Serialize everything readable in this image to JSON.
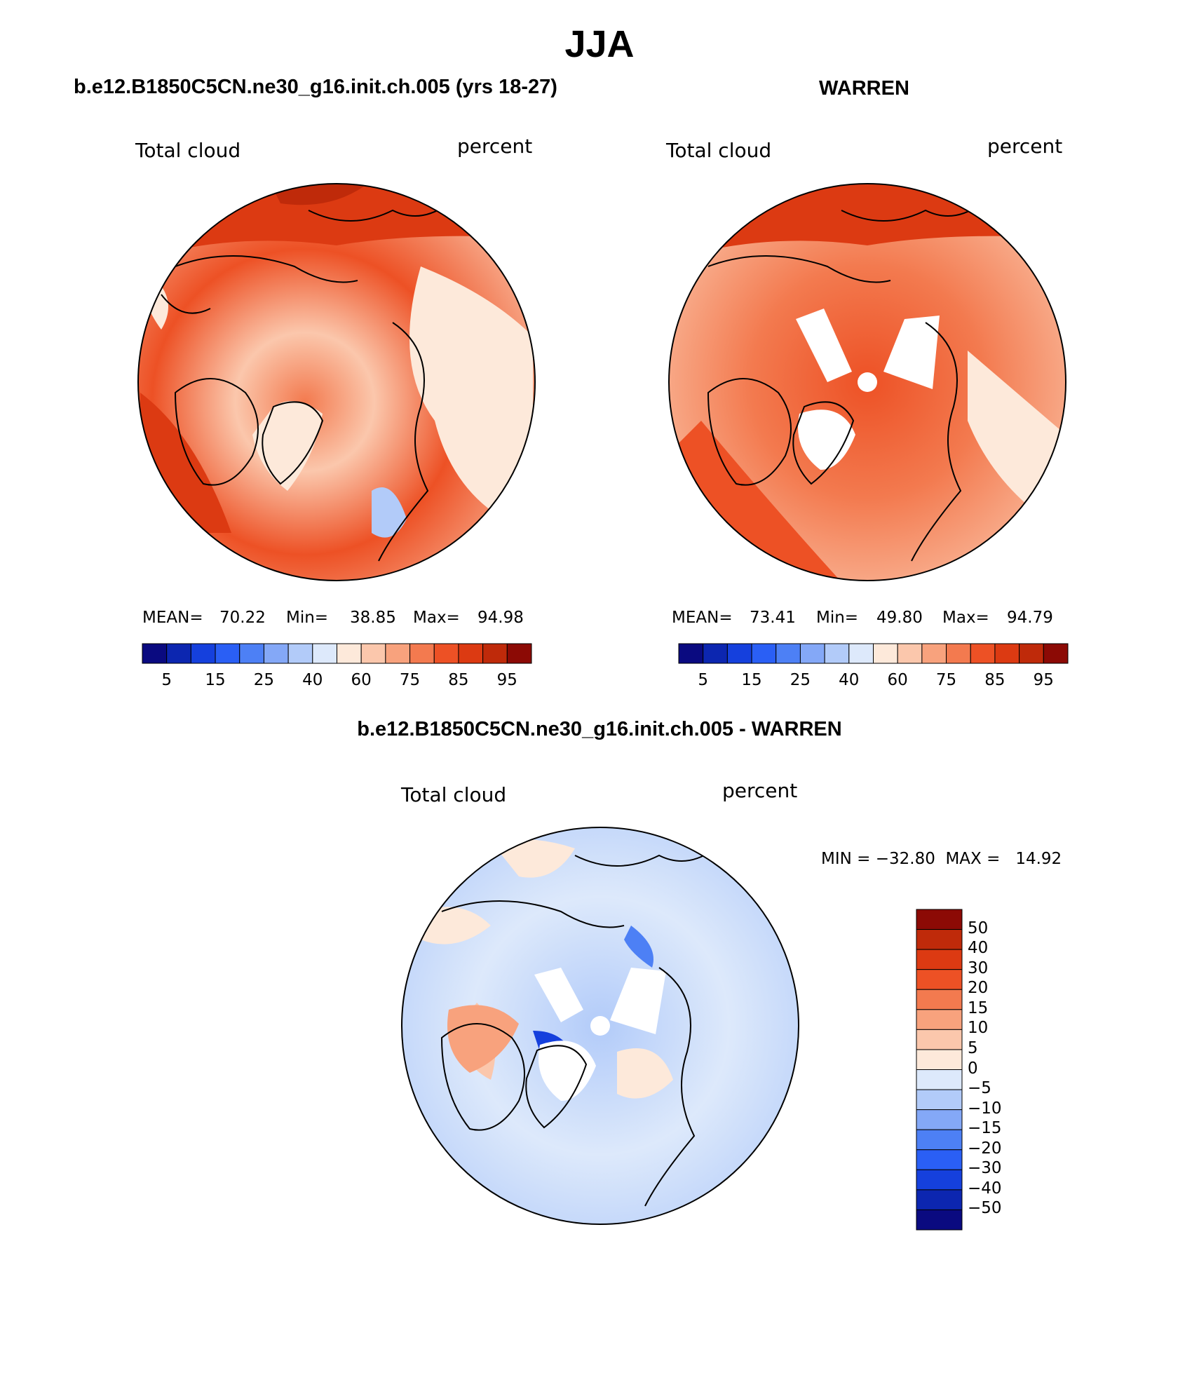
{
  "season": "JJA",
  "panels": [
    {
      "title": "b.e12.B1850C5CN.ne30_g16.init.ch.005 (yrs 18-27)",
      "variable": "Total cloud",
      "units": "percent",
      "stats": {
        "mean_label": "MEAN=",
        "mean": "70.22",
        "min_label": "Min=",
        "min": "38.85",
        "max_label": "Max=",
        "max": "94.98"
      },
      "colorbar_ticks": [
        "5",
        "15",
        "25",
        "40",
        "60",
        "75",
        "85",
        "95"
      ]
    },
    {
      "title": "WARREN",
      "variable": "Total cloud",
      "units": "percent",
      "stats": {
        "mean_label": "MEAN=",
        "mean": "73.41",
        "min_label": "Min=",
        "min": "49.80",
        "max_label": "Max=",
        "max": "94.79"
      },
      "colorbar_ticks": [
        "5",
        "15",
        "25",
        "40",
        "60",
        "75",
        "85",
        "95"
      ]
    }
  ],
  "difference": {
    "title": "b.e12.B1850C5CN.ne30_g16.init.ch.005 - WARREN",
    "variable": "Total cloud",
    "units": "percent",
    "minmax": "MIN = −32.80  MAX =   14.92",
    "colorbar_ticks": [
      "50",
      "40",
      "30",
      "20",
      "15",
      "10",
      "5",
      "0",
      "−5",
      "−10",
      "−15",
      "−20",
      "−30",
      "−40",
      "−50"
    ]
  },
  "colors": {
    "abs_scale": [
      "#0a0a80",
      "#0c26b0",
      "#1540dd",
      "#2a5ff5",
      "#4d80f5",
      "#84a8f7",
      "#b2cbf9",
      "#dde9fb",
      "#fde9da",
      "#fbc7ac",
      "#f8a27d",
      "#f37a4f",
      "#ed5125",
      "#dc3a12",
      "#bf2a0a",
      "#8c0a05"
    ],
    "diff_scale": [
      "#8c0a05",
      "#bf2a0a",
      "#dc3a12",
      "#ed5125",
      "#f37a4f",
      "#f8a27d",
      "#fbc7ac",
      "#fde9da",
      "#dde9fb",
      "#b2cbf9",
      "#84a8f7",
      "#4d80f5",
      "#2a5ff5",
      "#1540dd",
      "#0c26b0",
      "#0a0a80"
    ]
  }
}
